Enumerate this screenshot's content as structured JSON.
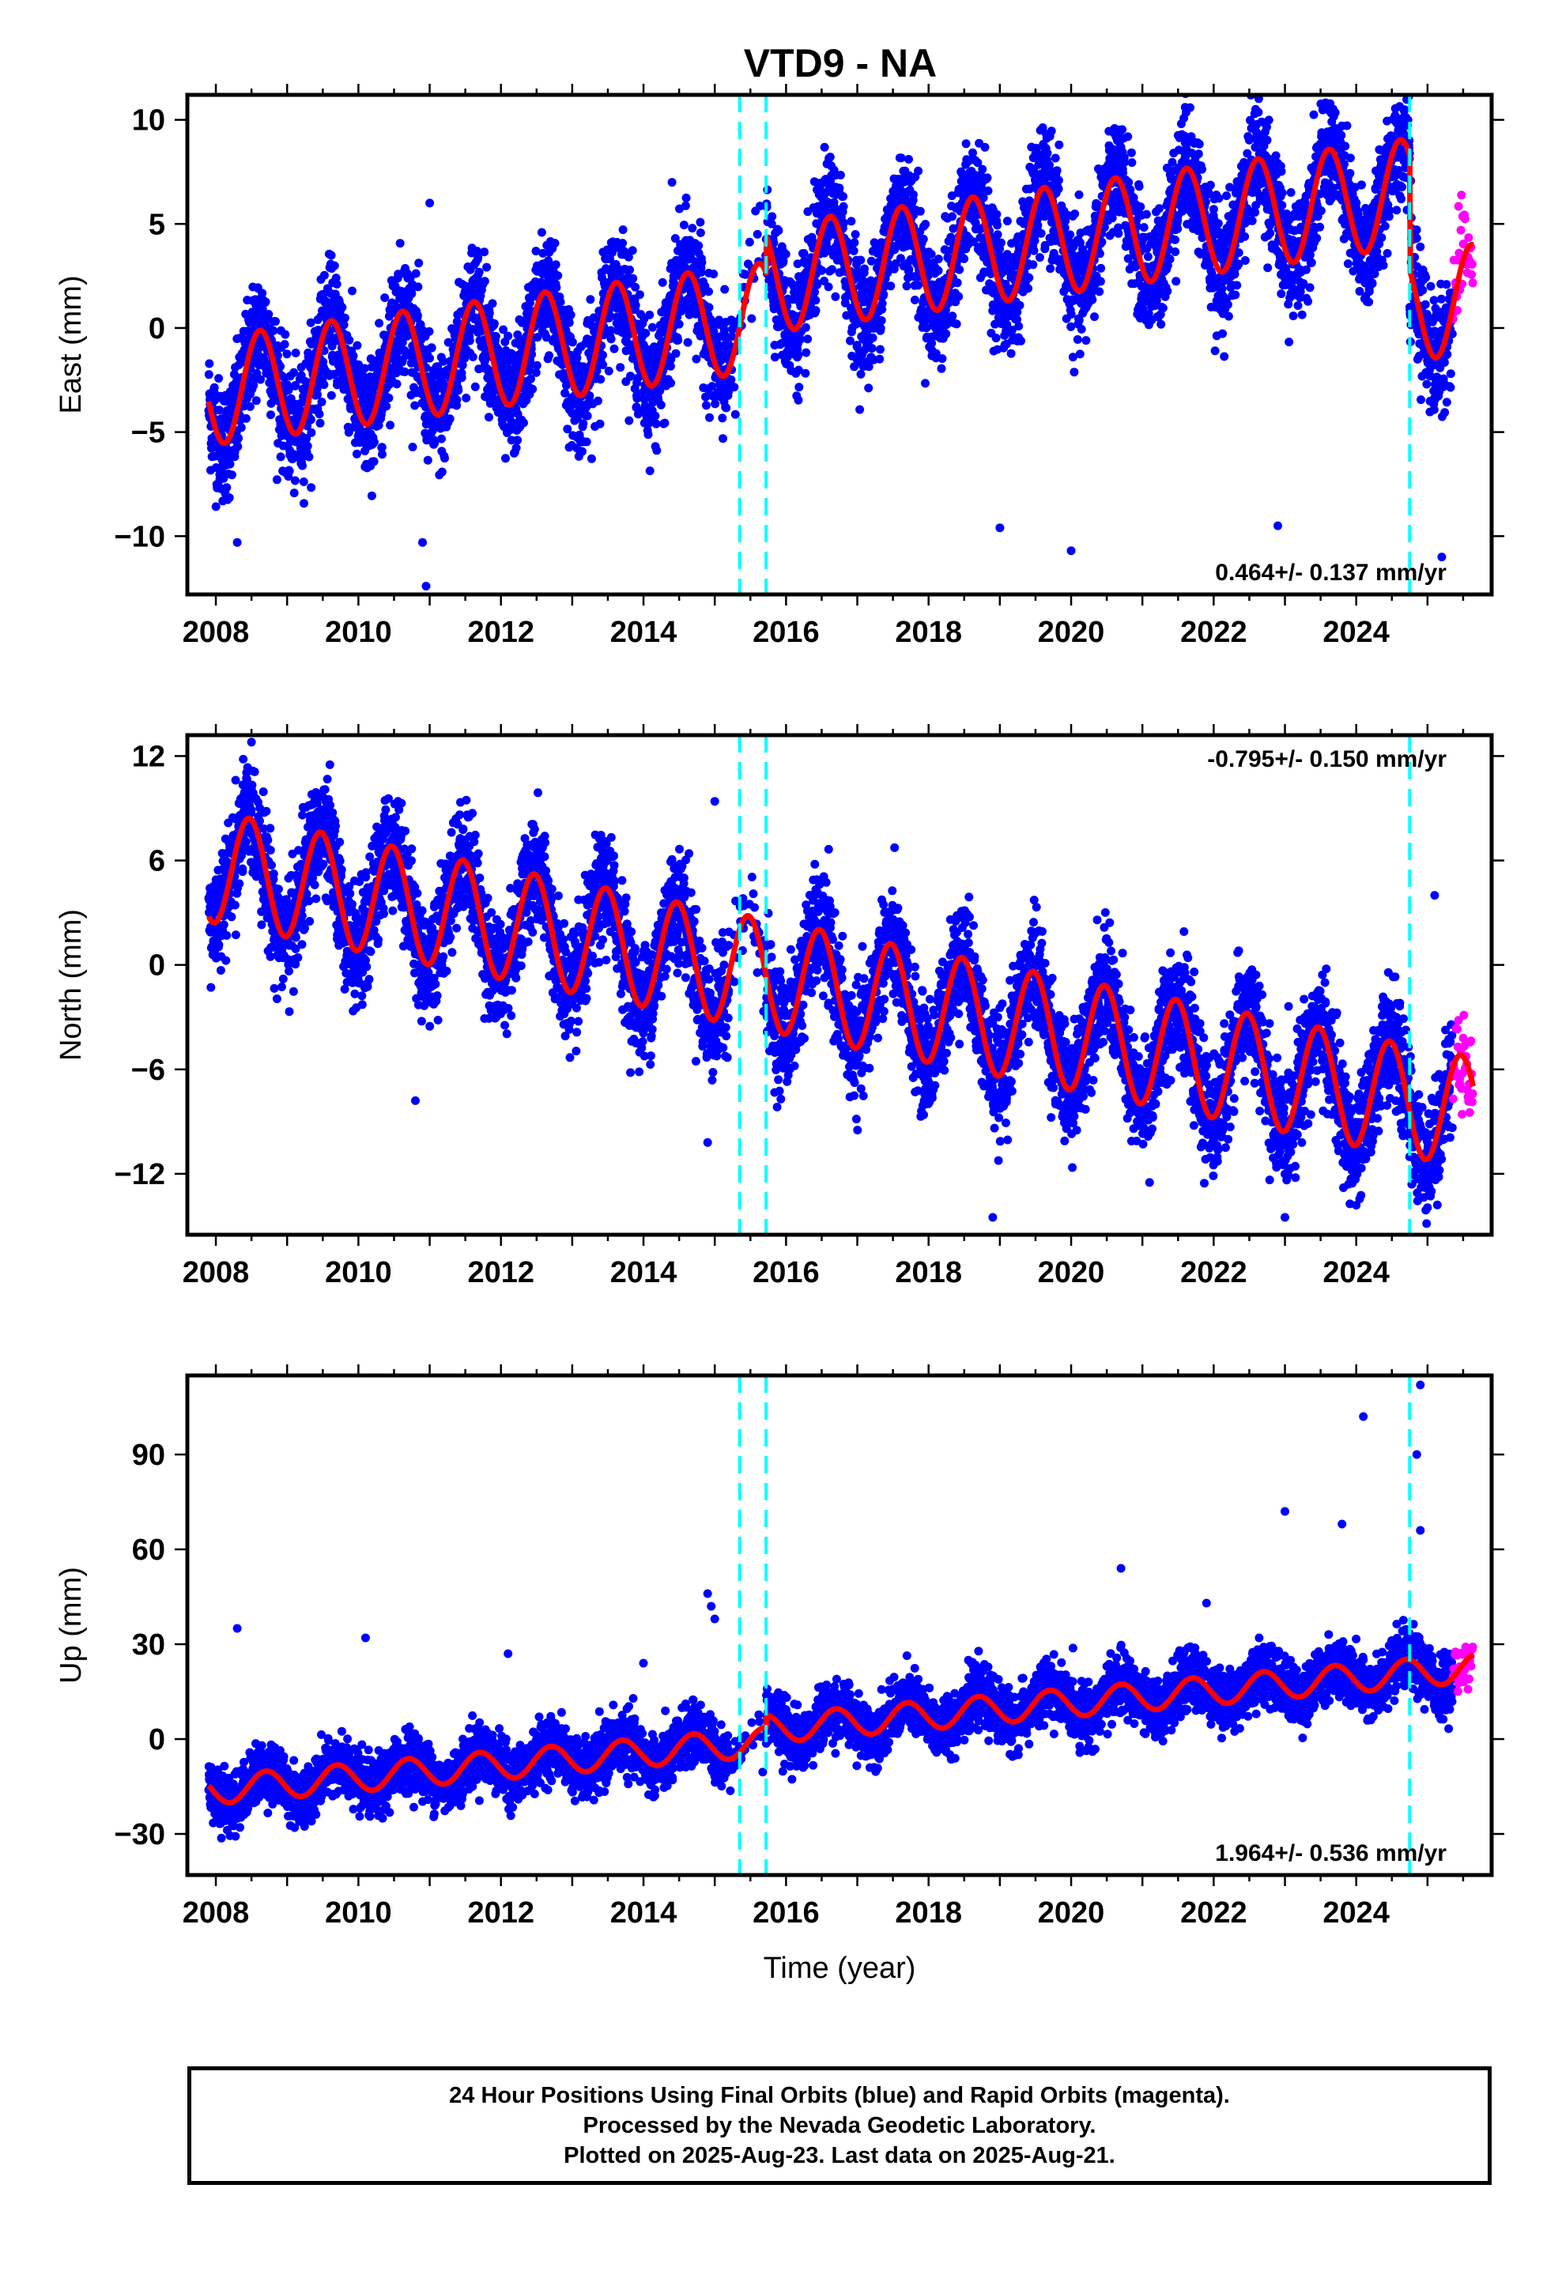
{
  "title": "VTD9 - NA",
  "colors": {
    "final_orbits": "#0000ff",
    "rapid_orbits": "#ff00ff",
    "model_fit": "#ff0000",
    "events": "#00ffff",
    "frame": "#000000"
  },
  "caption": {
    "line1": "24 Hour Positions Using Final Orbits (blue) and Rapid Orbits (magenta).",
    "line2": "Processed by the Nevada Geodetic Laboratory.",
    "line3": "Plotted on 2025-Aug-23. Last data on 2025-Aug-21."
  },
  "chart_data": [
    {
      "type": "scatter",
      "title": "VTD9 - NA",
      "xlabel": "",
      "ylabel": "East (mm)",
      "xlim": [
        2007.6,
        2025.9
      ],
      "ylim": [
        -12.8,
        11.2
      ],
      "x_ticks": [
        2008,
        2010,
        2012,
        2014,
        2016,
        2018,
        2020,
        2022,
        2024
      ],
      "y_ticks": [
        -10,
        -5,
        0,
        5,
        10
      ],
      "rate": "0.464+/- 0.137 mm/yr",
      "rate_position": "bottom-right",
      "event_lines": [
        2015.35,
        2015.72,
        2024.75
      ],
      "seasonal": {
        "offset": -3.0,
        "trend": 0.46,
        "amplitude": 2.6,
        "peak_phase": 0.62
      },
      "segment_offsets": [
        {
          "after": 2015.72,
          "delta": 1.8
        },
        {
          "after": 2024.75,
          "delta": -5.5
        }
      ],
      "scatter_sd": 1.4,
      "outliers": [
        [
          2010.9,
          -10.3
        ],
        [
          2010.95,
          -12.4
        ],
        [
          2008.3,
          -10.3
        ],
        [
          2020.0,
          -10.7
        ],
        [
          2021.6,
          10.6
        ],
        [
          2022.9,
          -9.5
        ],
        [
          2025.2,
          -11.0
        ],
        [
          2019.0,
          -9.6
        ],
        [
          2014.4,
          7.0
        ],
        [
          2011.0,
          6.0
        ]
      ],
      "series": [
        {
          "name": "Final Orbits",
          "x_range": [
            2007.9,
            2025.35
          ],
          "color": "#0000ff"
        },
        {
          "name": "Rapid Orbits",
          "x_range": [
            2025.36,
            2025.64
          ],
          "color": "#ff00ff"
        },
        {
          "name": "Model",
          "x_range": [
            2007.9,
            2025.64
          ],
          "color": "#ff0000"
        }
      ]
    },
    {
      "type": "scatter",
      "xlabel": "",
      "ylabel": "North (mm)",
      "xlim": [
        2007.6,
        2025.9
      ],
      "ylim": [
        -15.5,
        13.2
      ],
      "x_ticks": [
        2008,
        2010,
        2012,
        2014,
        2016,
        2018,
        2020,
        2022,
        2024
      ],
      "y_ticks": [
        -12,
        -6,
        0,
        6,
        12
      ],
      "rate": "-0.795+/- 0.150 mm/yr",
      "rate_position": "top-right",
      "event_lines": [
        2015.35,
        2015.72,
        2024.75
      ],
      "seasonal": {
        "offset": 5.6,
        "trend": -0.8,
        "amplitude": 3.2,
        "peak_phase": 0.47
      },
      "segment_offsets": [],
      "scatter_sd": 1.6,
      "outliers": [
        [
          2008.5,
          12.8
        ],
        [
          2009.6,
          11.5
        ],
        [
          2010.8,
          -7.8
        ],
        [
          2015.0,
          9.4
        ],
        [
          2018.9,
          -14.5
        ],
        [
          2023.0,
          -14.5
        ],
        [
          2024.0,
          -13.8
        ],
        [
          2025.1,
          4.0
        ],
        [
          2014.9,
          -10.2
        ],
        [
          2021.1,
          -12.5
        ]
      ],
      "series": [
        {
          "name": "Final Orbits",
          "x_range": [
            2007.9,
            2025.35
          ],
          "color": "#0000ff"
        },
        {
          "name": "Rapid Orbits",
          "x_range": [
            2025.36,
            2025.64
          ],
          "color": "#ff00ff"
        },
        {
          "name": "Model",
          "x_range": [
            2007.9,
            2025.64
          ],
          "color": "#ff0000"
        }
      ]
    },
    {
      "type": "scatter",
      "xlabel": "Time (year)",
      "ylabel": "Up (mm)",
      "xlim": [
        2007.6,
        2025.9
      ],
      "ylim": [
        -43,
        115
      ],
      "x_ticks": [
        2008,
        2010,
        2012,
        2014,
        2016,
        2018,
        2020,
        2022,
        2024
      ],
      "y_ticks": [
        -30,
        0,
        30,
        60,
        90
      ],
      "rate": "1.964+/- 0.536 mm/yr",
      "rate_position": "bottom-right",
      "event_lines": [
        2015.35,
        2015.72,
        2024.75
      ],
      "seasonal": {
        "offset": -16.0,
        "trend": 1.96,
        "amplitude": 4.5,
        "peak_phase": 0.7
      },
      "segment_offsets": [
        {
          "after": 2015.72,
          "delta": 4.0
        }
      ],
      "scatter_sd": 4.5,
      "outliers": [
        [
          2008.3,
          35.0
        ],
        [
          2010.1,
          32.0
        ],
        [
          2012.1,
          27.0
        ],
        [
          2014.0,
          24.0
        ],
        [
          2014.9,
          46.0
        ],
        [
          2014.95,
          42.0
        ],
        [
          2015.0,
          38.0
        ],
        [
          2020.7,
          54.0
        ],
        [
          2021.9,
          43.0
        ],
        [
          2023.0,
          72.0
        ],
        [
          2023.8,
          68.0
        ],
        [
          2024.1,
          102.0
        ],
        [
          2024.9,
          112.0
        ],
        [
          2024.85,
          90.0
        ],
        [
          2024.9,
          66.0
        ]
      ],
      "series": [
        {
          "name": "Final Orbits",
          "x_range": [
            2007.9,
            2025.35
          ],
          "color": "#0000ff"
        },
        {
          "name": "Rapid Orbits",
          "x_range": [
            2025.36,
            2025.64
          ],
          "color": "#ff00ff"
        },
        {
          "name": "Model",
          "x_range": [
            2007.9,
            2025.64
          ],
          "color": "#ff0000"
        }
      ]
    }
  ]
}
